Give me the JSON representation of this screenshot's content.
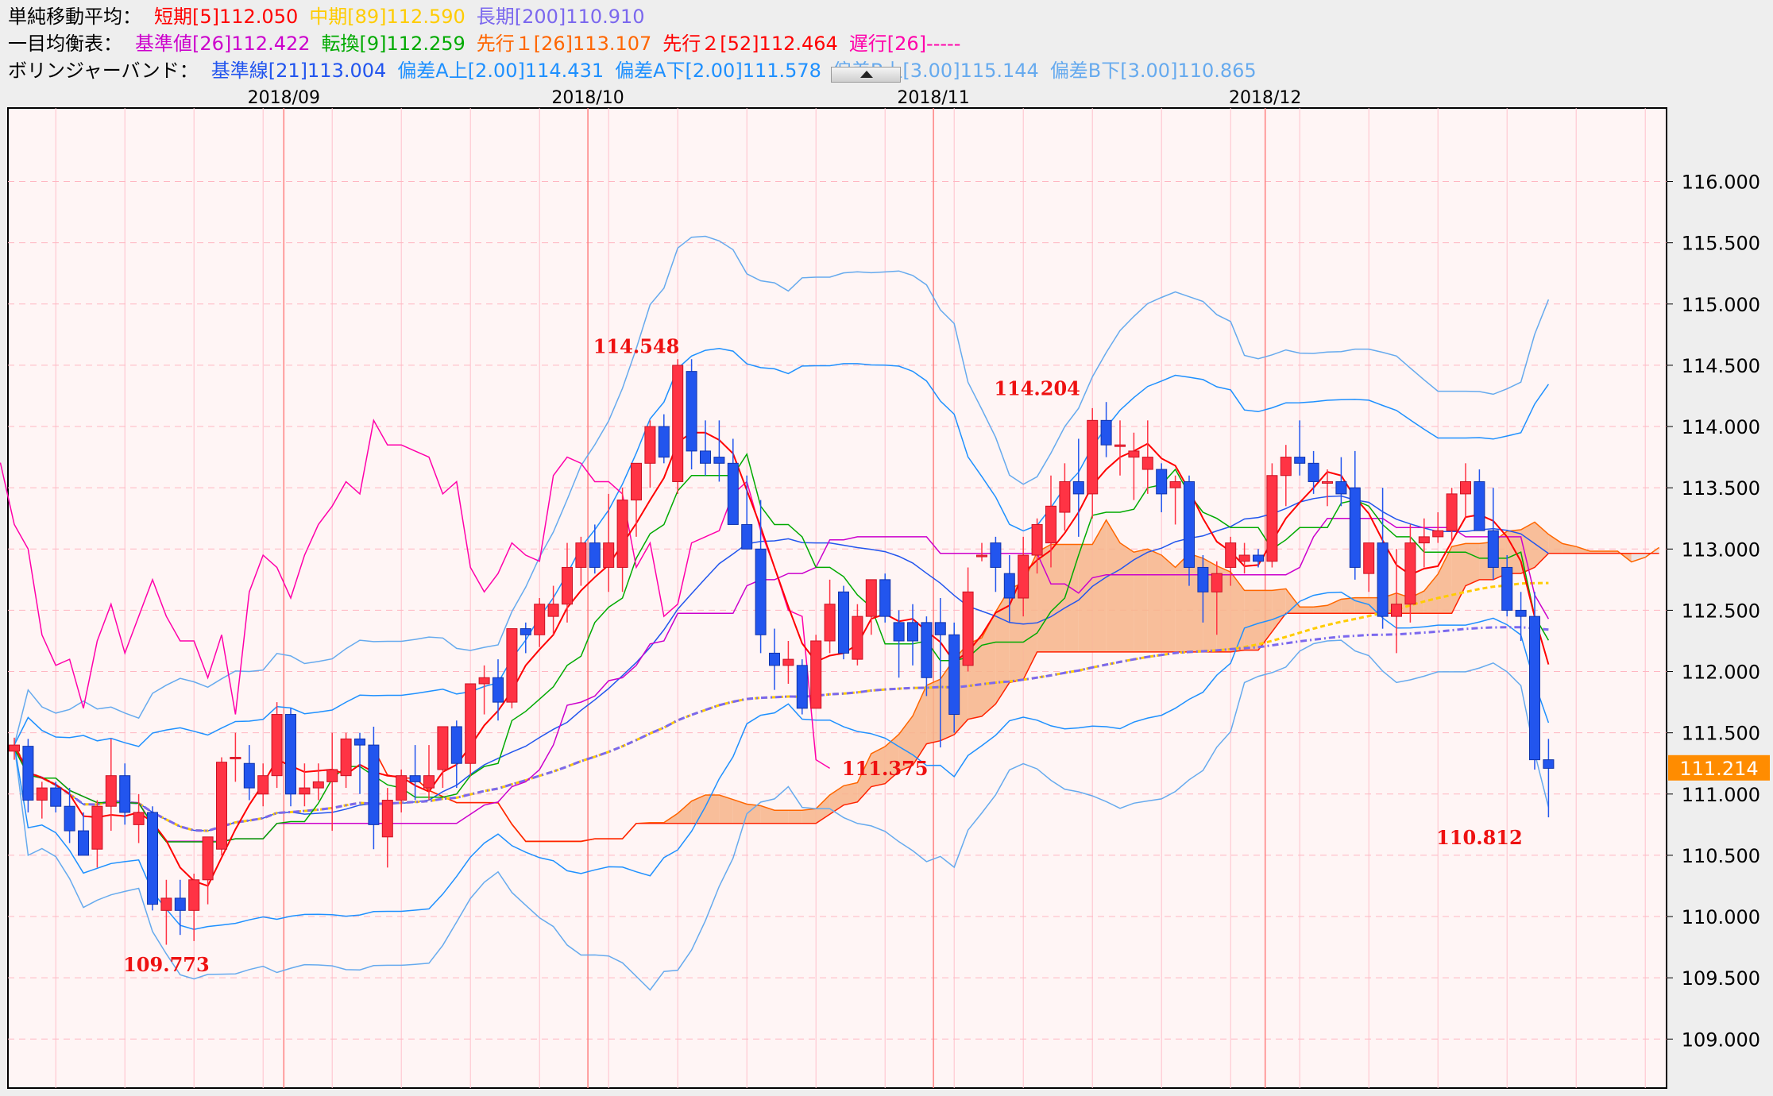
{
  "legend": {
    "sma": {
      "label": "単純移動平均：",
      "items": [
        {
          "text": "短期[5]112.050",
          "color": "#ff0000"
        },
        {
          "text": "中期[89]112.590",
          "color": "#ffcc00"
        },
        {
          "text": "長期[200]110.910",
          "color": "#7b68ee"
        }
      ]
    },
    "ichimoku": {
      "label": "一目均衡表：",
      "items": [
        {
          "text": "基準値[26]112.422",
          "color": "#cc00cc"
        },
        {
          "text": "転換[9]112.259",
          "color": "#00aa00"
        },
        {
          "text": "先行１[26]113.107",
          "color": "#ff6600"
        },
        {
          "text": "先行２[52]112.464",
          "color": "#ff0000"
        },
        {
          "text": "遅行[26]-----",
          "color": "#ff00aa"
        }
      ]
    },
    "bollinger": {
      "label": "ボリンジャーバンド：",
      "items": [
        {
          "text": "基準線[21]113.004",
          "color": "#2255ee"
        },
        {
          "text": "偏差A上[2.00]114.431",
          "color": "#1e90ff"
        },
        {
          "text": "偏差A下[2.00]111.578",
          "color": "#1e90ff"
        },
        {
          "text": "偏差B上[3.00]115.144",
          "color": "#66aaee"
        },
        {
          "text": "偏差B下[3.00]110.865",
          "color": "#66aaee"
        }
      ]
    }
  },
  "chart_data": {
    "type": "candlestick",
    "xlabels": [
      {
        "text": "2018/09",
        "index": 20
      },
      {
        "text": "2018/10",
        "index": 42
      },
      {
        "text": "2018/11",
        "index": 67
      },
      {
        "text": "2018/12",
        "index": 91
      }
    ],
    "ylim": [
      108.6,
      116.6
    ],
    "yticks": [
      "109.000",
      "109.500",
      "110.000",
      "110.500",
      "111.000",
      "111.500",
      "112.000",
      "112.500",
      "113.000",
      "113.500",
      "114.000",
      "114.500",
      "115.000",
      "115.500",
      "116.000"
    ],
    "current_price": "111.214",
    "annotations": [
      {
        "text": "109.773",
        "index": 11,
        "value": 109.773,
        "pos": "below"
      },
      {
        "text": "114.548",
        "index": 45,
        "value": 114.548,
        "pos": "above"
      },
      {
        "text": "111.375",
        "index": 63,
        "value": 111.375,
        "pos": "below"
      },
      {
        "text": "114.204",
        "index": 74,
        "value": 114.204,
        "pos": "above"
      },
      {
        "text": "110.812",
        "index": 106,
        "value": 110.812,
        "pos": "below"
      }
    ],
    "candles": [
      [
        111.35,
        111.46,
        111.28,
        111.4
      ],
      [
        111.39,
        111.45,
        110.85,
        110.95
      ],
      [
        110.95,
        111.1,
        110.8,
        111.05
      ],
      [
        111.05,
        111.1,
        110.85,
        110.9
      ],
      [
        110.9,
        111.05,
        110.6,
        110.7
      ],
      [
        110.7,
        110.85,
        110.5,
        110.5
      ],
      [
        110.55,
        110.95,
        110.4,
        110.9
      ],
      [
        110.9,
        111.45,
        110.7,
        111.15
      ],
      [
        111.15,
        111.25,
        110.75,
        110.85
      ],
      [
        110.75,
        111.0,
        110.6,
        110.85
      ],
      [
        110.85,
        110.9,
        110.05,
        110.1
      ],
      [
        110.05,
        110.3,
        109.77,
        110.15
      ],
      [
        110.15,
        110.3,
        109.85,
        110.05
      ],
      [
        110.05,
        110.35,
        109.8,
        110.3
      ],
      [
        110.3,
        110.65,
        110.1,
        110.65
      ],
      [
        110.55,
        111.3,
        110.5,
        111.26
      ],
      [
        111.3,
        111.5,
        111.1,
        111.3
      ],
      [
        111.25,
        111.4,
        110.95,
        111.05
      ],
      [
        111.0,
        111.25,
        110.9,
        111.15
      ],
      [
        111.15,
        111.75,
        111.05,
        111.65
      ],
      [
        111.65,
        111.7,
        110.9,
        111.0
      ],
      [
        111.0,
        111.25,
        110.9,
        111.05
      ],
      [
        111.05,
        111.25,
        110.95,
        111.1
      ],
      [
        111.1,
        111.5,
        110.7,
        111.2
      ],
      [
        111.15,
        111.5,
        111.05,
        111.45
      ],
      [
        111.45,
        111.5,
        111.0,
        111.4
      ],
      [
        111.4,
        111.55,
        110.55,
        110.75
      ],
      [
        110.65,
        111.05,
        110.4,
        110.95
      ],
      [
        110.95,
        111.2,
        110.85,
        111.15
      ],
      [
        111.15,
        111.4,
        110.95,
        111.1
      ],
      [
        111.05,
        111.4,
        110.95,
        111.15
      ],
      [
        111.2,
        111.55,
        111.05,
        111.55
      ],
      [
        111.55,
        111.6,
        111.05,
        111.25
      ],
      [
        111.25,
        111.9,
        111.15,
        111.9
      ],
      [
        111.9,
        112.05,
        111.65,
        111.95
      ],
      [
        111.95,
        112.1,
        111.6,
        111.75
      ],
      [
        111.75,
        112.35,
        111.7,
        112.35
      ],
      [
        112.35,
        112.4,
        112.15,
        112.3
      ],
      [
        112.3,
        112.6,
        112.2,
        112.55
      ],
      [
        112.45,
        112.7,
        112.3,
        112.55
      ],
      [
        112.55,
        113.05,
        112.4,
        112.85
      ],
      [
        112.85,
        113.1,
        112.7,
        113.05
      ],
      [
        113.05,
        113.2,
        112.8,
        112.85
      ],
      [
        112.85,
        113.45,
        112.65,
        113.05
      ],
      [
        112.85,
        113.5,
        112.65,
        113.4
      ],
      [
        113.4,
        113.7,
        113.1,
        113.7
      ],
      [
        113.7,
        114.05,
        113.5,
        114.0
      ],
      [
        114.0,
        114.1,
        113.7,
        113.75
      ],
      [
        113.55,
        114.55,
        113.45,
        114.5
      ],
      [
        114.45,
        114.55,
        113.65,
        113.8
      ],
      [
        113.8,
        114.05,
        113.6,
        113.7
      ],
      [
        113.75,
        114.05,
        113.55,
        113.7
      ],
      [
        113.7,
        113.9,
        113.2,
        113.2
      ],
      [
        113.2,
        113.6,
        113.0,
        113.0
      ],
      [
        113.0,
        113.4,
        112.15,
        112.3
      ],
      [
        112.15,
        112.35,
        111.85,
        112.05
      ],
      [
        112.05,
        112.25,
        111.9,
        112.1
      ],
      [
        112.05,
        112.1,
        111.65,
        111.7
      ],
      [
        111.7,
        112.3,
        111.7,
        112.25
      ],
      [
        112.25,
        112.75,
        112.15,
        112.55
      ],
      [
        112.65,
        112.7,
        112.1,
        112.15
      ],
      [
        112.1,
        112.55,
        112.05,
        112.45
      ],
      [
        112.45,
        112.75,
        112.3,
        112.75
      ],
      [
        112.75,
        112.8,
        112.4,
        112.45
      ],
      [
        112.4,
        112.5,
        111.95,
        112.25
      ],
      [
        112.4,
        112.55,
        112.05,
        112.25
      ],
      [
        112.4,
        112.45,
        111.8,
        111.95
      ],
      [
        112.4,
        112.6,
        111.38,
        112.3
      ],
      [
        112.3,
        112.4,
        111.5,
        111.65
      ],
      [
        112.05,
        112.85,
        112.0,
        112.65
      ],
      [
        112.95,
        113.05,
        112.9,
        112.95
      ],
      [
        113.05,
        113.1,
        112.65,
        112.85
      ],
      [
        112.8,
        112.95,
        112.4,
        112.6
      ],
      [
        112.6,
        113.1,
        112.45,
        112.95
      ],
      [
        112.95,
        113.25,
        112.8,
        113.2
      ],
      [
        113.05,
        113.6,
        112.85,
        113.35
      ],
      [
        113.3,
        113.7,
        113.15,
        113.55
      ],
      [
        113.55,
        113.9,
        113.1,
        113.45
      ],
      [
        113.45,
        114.15,
        113.25,
        114.05
      ],
      [
        114.05,
        114.2,
        113.75,
        113.85
      ],
      [
        113.85,
        114.05,
        113.6,
        113.85
      ],
      [
        113.75,
        113.95,
        113.4,
        113.8
      ],
      [
        113.65,
        114.05,
        113.45,
        113.75
      ],
      [
        113.65,
        113.7,
        113.3,
        113.45
      ],
      [
        113.5,
        113.6,
        113.2,
        113.55
      ],
      [
        113.55,
        113.6,
        112.7,
        112.85
      ],
      [
        112.85,
        112.95,
        112.4,
        112.65
      ],
      [
        112.65,
        112.9,
        112.3,
        112.8
      ],
      [
        112.85,
        113.1,
        112.7,
        113.05
      ],
      [
        112.9,
        113.05,
        112.8,
        112.95
      ],
      [
        112.95,
        113.0,
        112.85,
        112.9
      ],
      [
        112.9,
        113.7,
        112.85,
        113.6
      ],
      [
        113.6,
        113.85,
        113.35,
        113.75
      ],
      [
        113.75,
        114.05,
        113.6,
        113.7
      ],
      [
        113.7,
        113.8,
        113.45,
        113.55
      ],
      [
        113.55,
        113.65,
        113.35,
        113.55
      ],
      [
        113.55,
        113.75,
        113.35,
        113.45
      ],
      [
        113.5,
        113.8,
        112.75,
        112.85
      ],
      [
        112.8,
        113.05,
        112.65,
        113.05
      ],
      [
        113.05,
        113.5,
        112.35,
        112.45
      ],
      [
        112.45,
        113.0,
        112.15,
        112.55
      ],
      [
        112.55,
        113.2,
        112.4,
        113.05
      ],
      [
        113.05,
        113.25,
        112.85,
        113.1
      ],
      [
        113.1,
        113.3,
        113.05,
        113.15
      ],
      [
        113.15,
        113.5,
        113.05,
        113.45
      ],
      [
        113.45,
        113.7,
        113.25,
        113.55
      ],
      [
        113.55,
        113.65,
        113.15,
        113.15
      ],
      [
        113.15,
        113.5,
        112.75,
        112.85
      ],
      [
        112.85,
        112.95,
        112.45,
        112.5
      ],
      [
        112.5,
        112.65,
        112.25,
        112.45
      ],
      [
        112.45,
        112.65,
        111.2,
        111.28
      ],
      [
        111.28,
        111.45,
        110.81,
        111.21
      ]
    ]
  }
}
